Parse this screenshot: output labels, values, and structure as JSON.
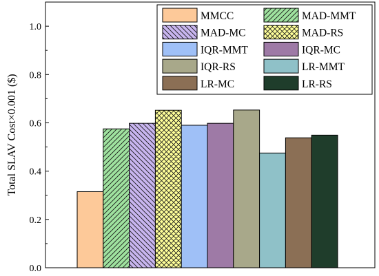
{
  "chart_data": {
    "type": "bar",
    "ylabel": "Total SLAV Cost×0.001 ($)",
    "xlabel": "",
    "ylim": [
      0.0,
      1.1
    ],
    "yticks": [
      "0.0",
      "0.2",
      "0.4",
      "0.6",
      "0.8",
      "1.0"
    ],
    "legend_position": "top-right",
    "series": [
      {
        "name": "MMCC",
        "value": 0.315,
        "color": "#fdc999",
        "pattern": "solid"
      },
      {
        "name": "MAD-MMT",
        "value": 0.575,
        "color": "#9fe29f",
        "pattern": "diag-right"
      },
      {
        "name": "MAD-MC",
        "value": 0.598,
        "color": "#c8b5ef",
        "pattern": "diag-left"
      },
      {
        "name": "MAD-RS",
        "value": 0.652,
        "color": "#ffff99",
        "pattern": "crosshatch"
      },
      {
        "name": "IQR-MMT",
        "value": 0.59,
        "color": "#9fc0f7",
        "pattern": "solid"
      },
      {
        "name": "IQR-MC",
        "value": 0.598,
        "color": "#9e7aa6",
        "pattern": "solid"
      },
      {
        "name": "IQR-RS",
        "value": 0.653,
        "color": "#a8a88a",
        "pattern": "solid"
      },
      {
        "name": "LR-MMT",
        "value": 0.475,
        "color": "#8fc1c8",
        "pattern": "solid"
      },
      {
        "name": "LR-MC",
        "value": 0.538,
        "color": "#8b6f55",
        "pattern": "solid"
      },
      {
        "name": "LR-RS",
        "value": 0.549,
        "color": "#1f3d2b",
        "pattern": "solid"
      }
    ]
  }
}
